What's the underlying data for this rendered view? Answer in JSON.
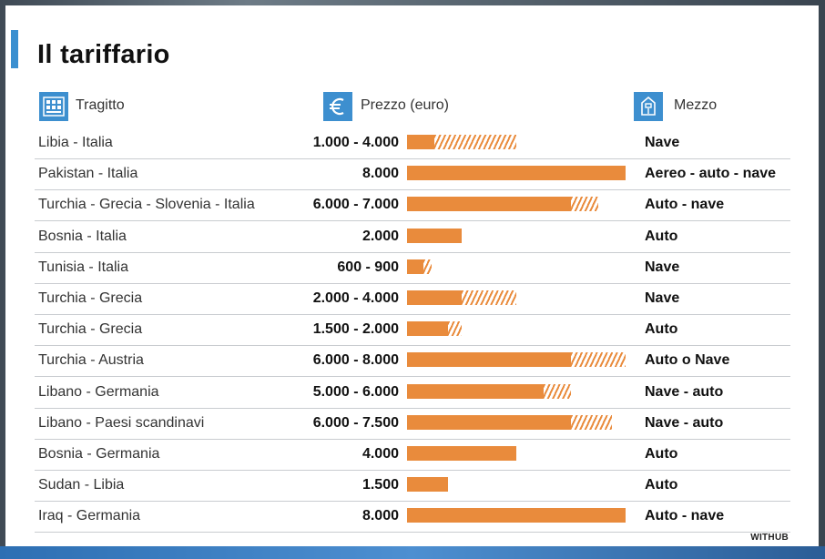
{
  "title": "Il tariffario",
  "source": "WITHUB",
  "headers": {
    "route": "Tragitto",
    "price": "Prezzo (euro)",
    "means": "Mezzo"
  },
  "icons": {
    "route": "map-icon",
    "price": "euro-icon",
    "means": "ferry-icon"
  },
  "colors": {
    "bar": "#e98b3c",
    "accent": "#3a8fd0",
    "icon_bg": "#3d8fcf"
  },
  "chart_data": {
    "type": "bar",
    "orientation": "horizontal",
    "xlim": [
      0,
      8000
    ],
    "categories": [
      "Libia - Italia",
      "Pakistan - Italia",
      "Turchia - Grecia - Slovenia - Italia",
      "Bosnia - Italia",
      "Tunisia - Italia",
      "Turchia - Grecia",
      "Turchia - Grecia",
      "Turchia - Austria",
      "Libano - Germania",
      "Libano - Paesi scandinavi",
      "Bosnia - Germania",
      "Sudan - Libia",
      "Iraq - Germania"
    ],
    "price_labels": [
      "1.000 - 4.000",
      "8.000",
      "6.000 - 7.000",
      "2.000",
      "600 - 900",
      "2.000 - 4.000",
      "1.500 - 2.000",
      "6.000 - 8.000",
      "5.000 - 6.000",
      "6.000 - 7.500",
      "4.000",
      "1.500",
      "8.000"
    ],
    "min_values": [
      1000,
      8000,
      6000,
      2000,
      600,
      2000,
      1500,
      6000,
      5000,
      6000,
      4000,
      1500,
      8000
    ],
    "max_values": [
      4000,
      8000,
      7000,
      2000,
      900,
      4000,
      2000,
      8000,
      6000,
      7500,
      4000,
      1500,
      8000
    ],
    "means": [
      "Nave",
      "Aereo - auto - nave",
      "Auto - nave",
      "Auto",
      "Nave",
      "Nave",
      "Auto",
      "Auto o Nave",
      "Nave - auto",
      "Nave - auto",
      "Auto",
      "Auto",
      "Auto - nave"
    ]
  }
}
